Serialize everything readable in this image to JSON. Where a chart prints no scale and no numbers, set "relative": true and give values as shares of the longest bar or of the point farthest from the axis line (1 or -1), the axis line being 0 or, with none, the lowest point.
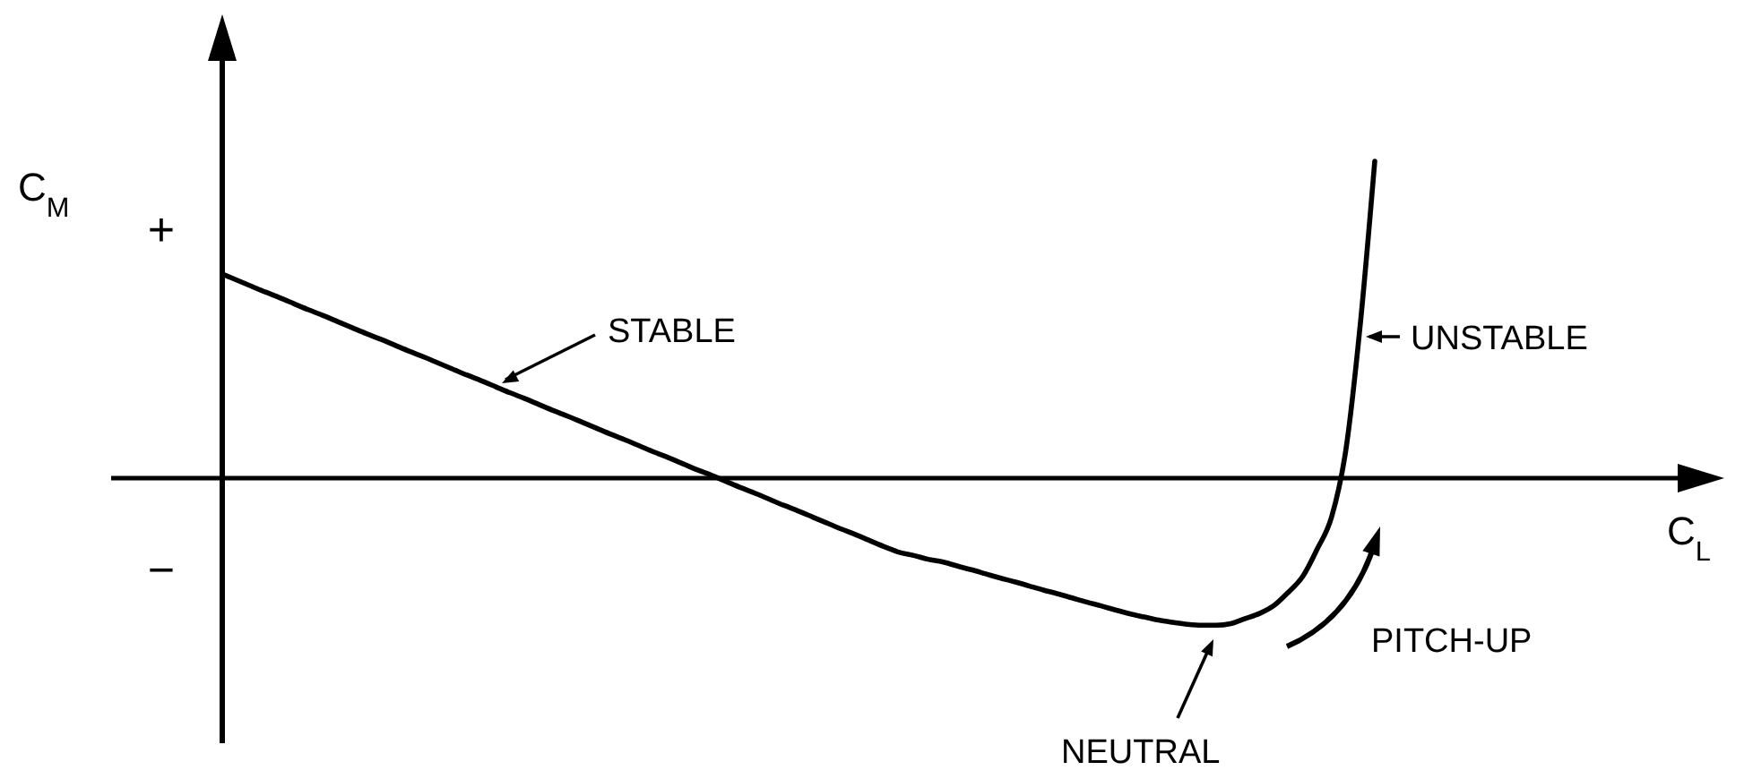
{
  "chart_data": {
    "type": "line",
    "relative": true,
    "ylabel": "C$_{M}$",
    "categories": [
      null,
      null,
      null,
      null,
      null,
      null,
      null,
      null,
      null,
      null,
      null,
      null,
      null,
      null,
      null,
      null,
      null,
      null,
      null,
      null,
      null,
      null,
      null,
      null,
      null,
      null,
      null,
      null,
      null,
      null,
      null,
      null,
      null,
      null,
      null,
      null,
      null,
      null,
      null,
      null,
      null,
      null,
      null,
      null,
      null,
      null,
      null,
      null,
      null,
      null,
      null,
      null,
      null,
      null,
      null,
      null,
      null,
      null,
      null,
      null,
      null,
      null,
      null,
      null,
      null,
      null,
      null,
      null,
      null,
      null,
      null,
      null,
      null,
      null,
      null,
      null,
      null,
      null,
      null,
      null,
      null
    ],
    "series": [
      {
        "color": "#000000",
        "values": [
          0.644,
          0.625,
          0.606,
          0.587,
          0.569,
          0.55,
          0.531,
          0.513,
          0.494,
          0.475,
          0.456,
          0.438,
          0.419,
          0.4,
          0.382,
          0.363,
          0.344,
          0.325,
          0.307,
          0.288,
          0.269,
          0.251,
          0.232,
          0.213,
          0.195,
          0.176,
          0.157,
          0.138,
          0.12,
          0.101,
          0.082,
          0.064,
          0.045,
          0.026,
          0.008,
          -0.011,
          -0.03,
          -0.048,
          -0.067,
          -0.086,
          -0.104,
          -0.123,
          -0.142,
          -0.161,
          -0.179,
          -0.198,
          -0.217,
          -0.234,
          -0.244,
          -0.256,
          -0.264,
          -0.277,
          -0.289,
          -0.302,
          -0.315,
          -0.327,
          -0.34,
          -0.353,
          -0.365,
          -0.378,
          -0.391,
          -0.403,
          -0.416,
          -0.428,
          -0.438,
          -0.448,
          -0.455,
          -0.461,
          -0.464,
          -0.464,
          -0.459,
          -0.443,
          -0.427,
          -0.402,
          -0.36,
          -0.31,
          -0.224,
          -0.123,
          0.091,
          0.488,
          1.0
        ]
      }
    ],
    "annotations": [
      "STABLE",
      "UNSTABLE",
      "NEUTRAL",
      "PITCH-UP",
      "+",
      "−",
      "C$_{L}$"
    ]
  }
}
